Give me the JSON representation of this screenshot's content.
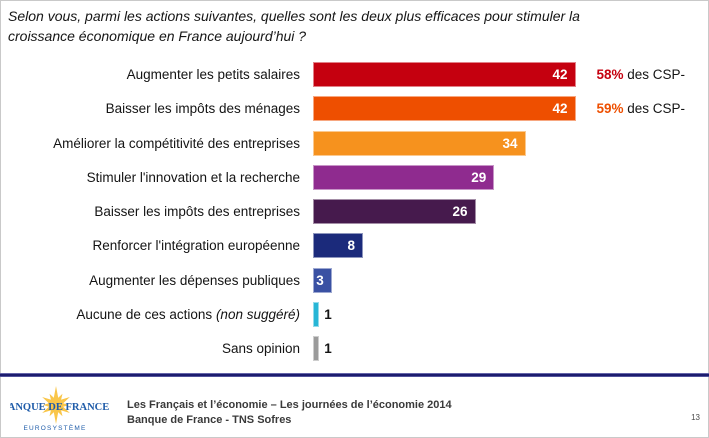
{
  "title": {
    "line1": "Selon vous, parmi les actions suivantes, quelles sont les deux plus efficaces pour stimuler la",
    "line2": "croissance économique en France aujourd’hui ?"
  },
  "chart_data": {
    "type": "bar",
    "orientation": "horizontal",
    "title": "Selon vous, parmi les actions suivantes, quelles sont les deux plus efficaces pour stimuler la croissance économique en France aujourd’hui ?",
    "unit": "%",
    "xlim": [
      0,
      45
    ],
    "grid": false,
    "legend": "none",
    "bars": [
      {
        "label": "Augmenter les petits salaires",
        "value": 42,
        "color": "#C5000F",
        "annotation": {
          "highlight": "58%",
          "text": " des CSP-",
          "color": "#C5000F"
        }
      },
      {
        "label": "Baisser les impôts des ménages",
        "value": 42,
        "color": "#EE4F00",
        "annotation": {
          "highlight": "59%",
          "text": " des CSP-",
          "color": "#EE4F00"
        }
      },
      {
        "label": "Améliorer la compétitivité des entreprises",
        "value": 34,
        "color": "#F6921E"
      },
      {
        "label": "Stimuler l'innovation et la recherche",
        "value": 29,
        "color": "#8F2B8F"
      },
      {
        "label": "Baisser les impôts des entreprises",
        "value": 26,
        "color": "#461A4D"
      },
      {
        "label": "Renforcer l'intégration européenne",
        "value": 8,
        "color": "#1B2A7B"
      },
      {
        "label": "Augmenter les dépenses publiques",
        "value": 3,
        "color": "#3A51A3"
      },
      {
        "label": "Aucune de ces actions",
        "label_italic": " (non suggéré)",
        "value": 1,
        "color": "#27B6D6"
      },
      {
        "label": "Sans opinion",
        "value": 1,
        "color": "#9B9B9B"
      }
    ]
  },
  "footer": {
    "logo": {
      "line1": "BANQUE DE FRANCE",
      "line2": "EUROSYSTÈME",
      "text_color": "#1F5CA9",
      "star_color": "#F9C64A"
    },
    "source_line1": "Les Français et l’économie – Les journées de l’économie 2014",
    "source_line2": "Banque de France - TNS Sofres",
    "page_number": "13"
  }
}
